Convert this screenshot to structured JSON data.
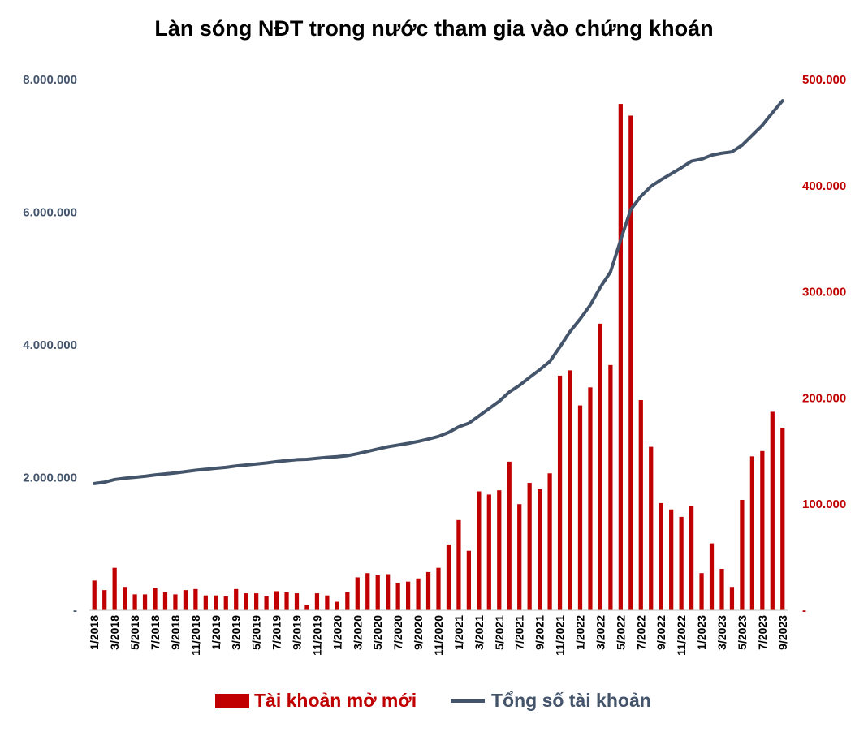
{
  "chart_data": {
    "type": "bar+line",
    "title": "Làn sóng NĐT trong nước tham gia vào chứng khoán",
    "colors": {
      "bar": "#C00000",
      "line": "#44546A",
      "left_axis_text": "#44546A",
      "right_axis_text": "#C00000"
    },
    "left_axis": {
      "min": 0,
      "max": 8000000,
      "ticks": [
        "-",
        "2.000.000",
        "4.000.000",
        "6.000.000",
        "8.000.000"
      ]
    },
    "right_axis": {
      "min": 0,
      "max": 500000,
      "ticks": [
        "-",
        "100.000",
        "200.000",
        "300.000",
        "400.000",
        "500.000"
      ]
    },
    "x_tick_labels": [
      "1/2018",
      "3/2018",
      "5/2018",
      "7/2018",
      "9/2018",
      "11/2018",
      "1/2019",
      "3/2019",
      "5/2019",
      "7/2019",
      "9/2019",
      "11/2019",
      "1/2020",
      "3/2020",
      "5/2020",
      "7/2020",
      "9/2020",
      "11/2020",
      "1/2021",
      "3/2021",
      "5/2021",
      "7/2021",
      "9/2021",
      "11/2021",
      "1/2022",
      "3/2022",
      "5/2022",
      "7/2022",
      "9/2022",
      "11/2022",
      "1/2023",
      "3/2023",
      "5/2023",
      "7/2023",
      "9/2023"
    ],
    "categories": [
      "1/2018",
      "2/2018",
      "3/2018",
      "4/2018",
      "5/2018",
      "6/2018",
      "7/2018",
      "8/2018",
      "9/2018",
      "10/2018",
      "11/2018",
      "12/2018",
      "1/2019",
      "2/2019",
      "3/2019",
      "4/2019",
      "5/2019",
      "6/2019",
      "7/2019",
      "8/2019",
      "9/2019",
      "10/2019",
      "11/2019",
      "12/2019",
      "1/2020",
      "2/2020",
      "3/2020",
      "4/2020",
      "5/2020",
      "6/2020",
      "7/2020",
      "8/2020",
      "9/2020",
      "10/2020",
      "11/2020",
      "12/2020",
      "1/2021",
      "2/2021",
      "3/2021",
      "4/2021",
      "5/2021",
      "6/2021",
      "7/2021",
      "8/2021",
      "9/2021",
      "10/2021",
      "11/2021",
      "12/2021",
      "1/2022",
      "2/2022",
      "3/2022",
      "4/2022",
      "5/2022",
      "6/2022",
      "7/2022",
      "8/2022",
      "9/2022",
      "10/2022",
      "11/2022",
      "12/2022",
      "1/2023",
      "2/2023",
      "3/2023",
      "4/2023",
      "5/2023",
      "6/2023",
      "7/2023",
      "8/2023",
      "9/2023"
    ],
    "series": [
      {
        "name": "Tài khoản mở mới",
        "type": "bar",
        "axis": "right",
        "values": [
          28000,
          19000,
          40000,
          22000,
          15000,
          15000,
          21000,
          17000,
          15000,
          19000,
          20000,
          14000,
          14000,
          13000,
          20000,
          16000,
          16000,
          13000,
          18000,
          17000,
          16000,
          5000,
          16000,
          14000,
          8000,
          17000,
          31000,
          35000,
          33000,
          34000,
          26000,
          27000,
          30000,
          36000,
          40000,
          62000,
          85000,
          56000,
          112000,
          109000,
          113000,
          140000,
          100000,
          120000,
          114000,
          129000,
          221000,
          226000,
          193000,
          210000,
          270000,
          231000,
          477000,
          466000,
          198000,
          154000,
          101000,
          95000,
          88000,
          98000,
          35000,
          63000,
          39000,
          22000,
          104000,
          145000,
          150000,
          187000,
          172000
        ]
      },
      {
        "name": "Tổng số tài khoản",
        "type": "line",
        "axis": "left",
        "values": [
          1910000,
          1930000,
          1970000,
          1990000,
          2005000,
          2020000,
          2040000,
          2055000,
          2070000,
          2090000,
          2110000,
          2125000,
          2140000,
          2155000,
          2175000,
          2190000,
          2205000,
          2220000,
          2240000,
          2255000,
          2270000,
          2275000,
          2290000,
          2305000,
          2315000,
          2330000,
          2360000,
          2395000,
          2430000,
          2465000,
          2490000,
          2515000,
          2545000,
          2580000,
          2620000,
          2680000,
          2765000,
          2820000,
          2930000,
          3040000,
          3150000,
          3290000,
          3390000,
          3510000,
          3625000,
          3750000,
          3970000,
          4200000,
          4390000,
          4600000,
          4870000,
          5100000,
          5580000,
          6040000,
          6240000,
          6390000,
          6490000,
          6580000,
          6670000,
          6770000,
          6800000,
          6860000,
          6890000,
          6910000,
          7010000,
          7160000,
          7310000,
          7500000,
          7680000
        ]
      }
    ],
    "legend_position": "bottom"
  }
}
